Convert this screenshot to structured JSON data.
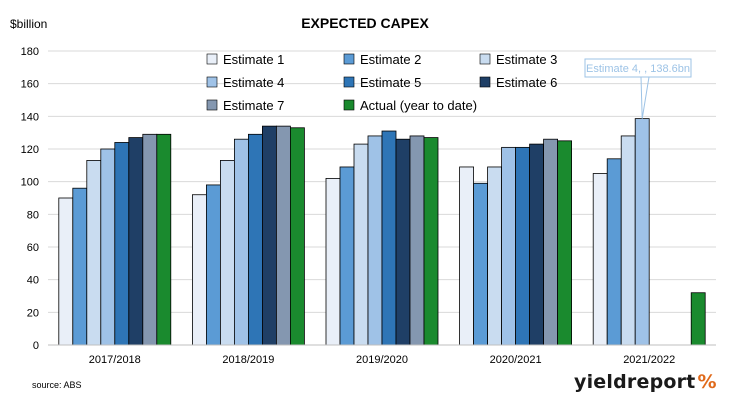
{
  "chart_data": {
    "type": "bar",
    "title": "EXPECTED CAPEX",
    "unit_label": "$billion",
    "categories": [
      "2017/2018",
      "2018/2019",
      "2019/2020",
      "2020/2021",
      "2021/2022"
    ],
    "ylim": [
      0,
      180
    ],
    "yticks": [
      0,
      20,
      40,
      60,
      80,
      100,
      120,
      140,
      160,
      180
    ],
    "grid": "horizontal",
    "legend_placement": "top-center",
    "series": [
      {
        "name": "Estimate 1",
        "color": "#e9eff8",
        "values": [
          90,
          92,
          102,
          109,
          105
        ]
      },
      {
        "name": "Estimate 2",
        "color": "#5b9bd5",
        "values": [
          96,
          98,
          109,
          99,
          114
        ]
      },
      {
        "name": "Estimate 3",
        "color": "#c9dcf0",
        "values": [
          113,
          113,
          123,
          109,
          128
        ]
      },
      {
        "name": "Estimate 4",
        "color": "#9fc2e7",
        "values": [
          120,
          126,
          128,
          121,
          138.6
        ]
      },
      {
        "name": "Estimate 5",
        "color": "#2e75b6",
        "values": [
          124,
          129,
          131,
          121,
          null
        ]
      },
      {
        "name": "Estimate 6",
        "color": "#1f3f66",
        "values": [
          127,
          134,
          126,
          123,
          null
        ]
      },
      {
        "name": "Estimate 7",
        "color": "#8497b0",
        "values": [
          129,
          134,
          128,
          126,
          null
        ]
      },
      {
        "name": "Actual (year to date)",
        "color": "#1a8a2e",
        "values": [
          129,
          133,
          127,
          125,
          32
        ]
      }
    ],
    "annotation": {
      "text": "Estimate 4, , 138.6bn",
      "series": "Estimate 4",
      "category": "2021/2022"
    }
  },
  "footer": {
    "source": "source: ABS",
    "brand_part1": "yield",
    "brand_part2": "report",
    "brand_symbol": "%"
  }
}
